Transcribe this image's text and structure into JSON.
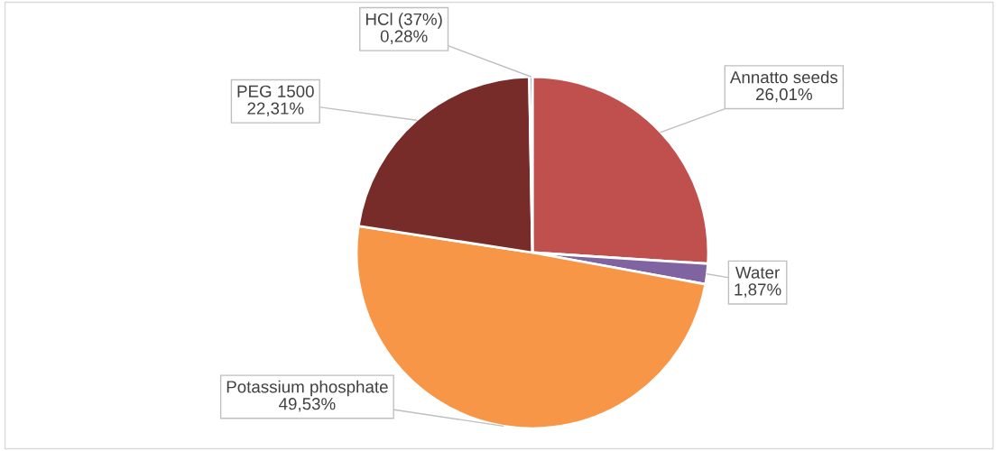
{
  "chart_data": {
    "type": "pie",
    "categories": [
      "Annatto seeds",
      "Water",
      "Potassium phosphate",
      "PEG 1500",
      "HCl (37%)"
    ],
    "values": [
      26.01,
      1.87,
      49.53,
      22.31,
      0.28
    ],
    "value_labels": [
      "26,01%",
      "1,87%",
      "49,53%",
      "22,31%",
      "0,28%"
    ],
    "colors": [
      "#c0504d",
      "#8064a2",
      "#f79646",
      "#772c2a",
      "#4f81bd"
    ],
    "legend": false
  }
}
